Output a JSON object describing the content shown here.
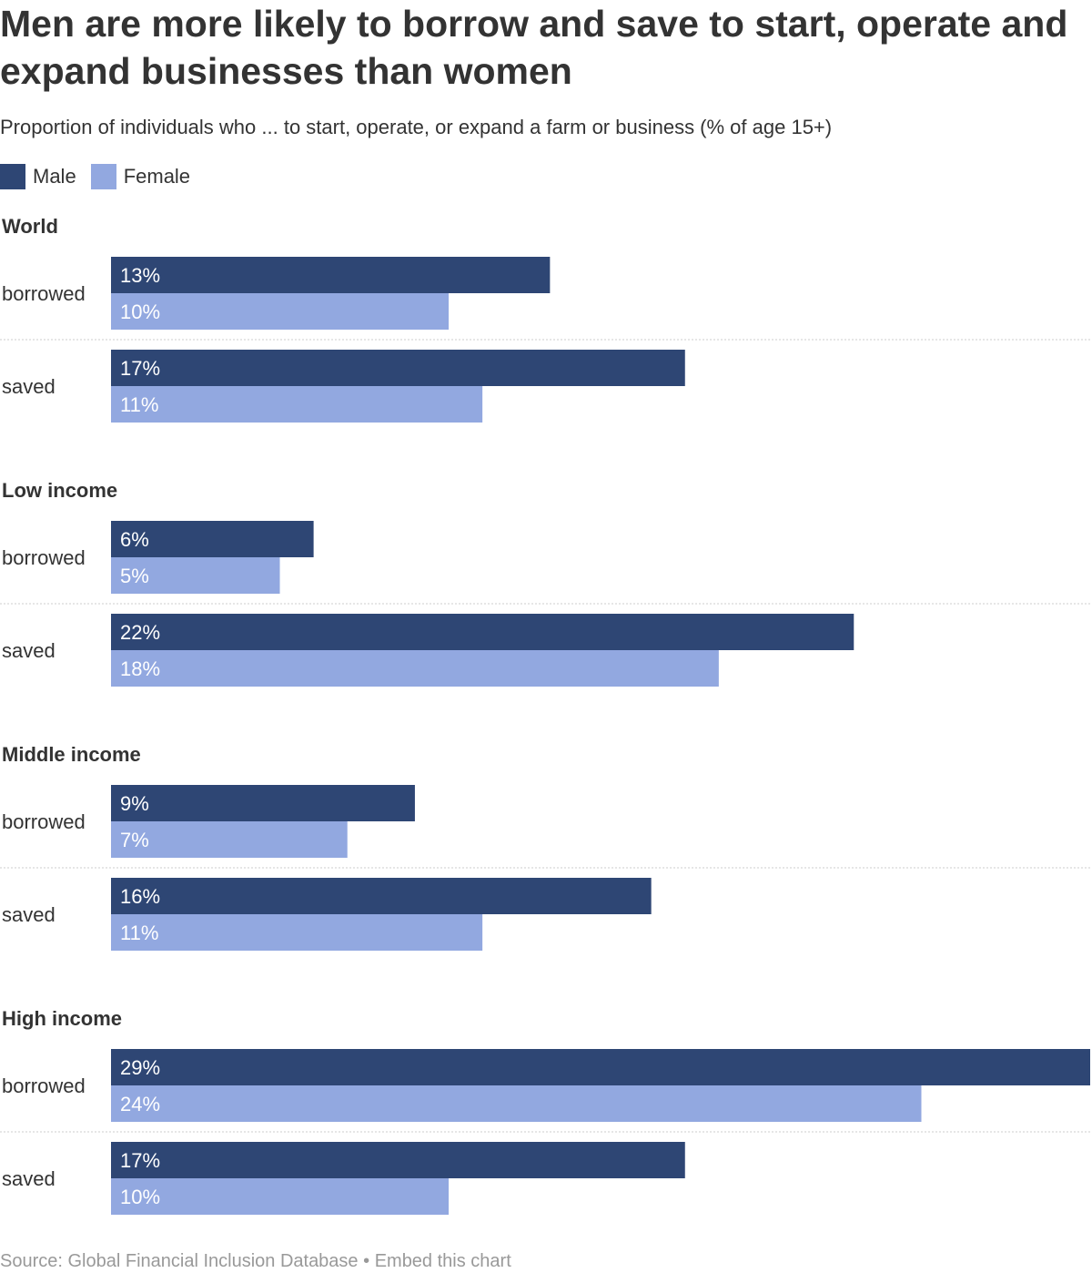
{
  "header": {
    "title": "Men are more likely to borrow and save to start, operate and expand businesses than women",
    "subtitle": "Proportion of individuals who ... to start, operate, or expand a farm or business (% of age 15+)"
  },
  "footer": {
    "source": "Source: Global Financial Inclusion Database",
    "separator": " • ",
    "embed": "Embed this chart"
  },
  "colors": {
    "male": "#2e4674",
    "female": "#92a8e0",
    "separator": "#cccccc",
    "value_text": "#ffffff"
  },
  "chart_data": {
    "type": "bar",
    "orientation": "horizontal",
    "title": "Men are more likely to borrow and save to start, operate and expand businesses than women",
    "subtitle": "Proportion of individuals who ... to start, operate, or expand a farm or business (% of age 15+)",
    "legend": {
      "placement": "top-left",
      "entries": [
        "Male",
        "Female"
      ]
    },
    "series": [
      {
        "name": "Male"
      },
      {
        "name": "Female"
      }
    ],
    "xlim": [
      0,
      29
    ],
    "value_suffix": "%",
    "groups": [
      {
        "name": "World",
        "categories": [
          {
            "label": "borrowed",
            "values": [
              13,
              10
            ]
          },
          {
            "label": "saved",
            "values": [
              17,
              11
            ]
          }
        ]
      },
      {
        "name": "Low income",
        "categories": [
          {
            "label": "borrowed",
            "values": [
              6,
              5
            ]
          },
          {
            "label": "saved",
            "values": [
              22,
              18
            ]
          }
        ]
      },
      {
        "name": "Middle income",
        "categories": [
          {
            "label": "borrowed",
            "values": [
              9,
              7
            ]
          },
          {
            "label": "saved",
            "values": [
              16,
              11
            ]
          }
        ]
      },
      {
        "name": "High income",
        "categories": [
          {
            "label": "borrowed",
            "values": [
              29,
              24
            ]
          },
          {
            "label": "saved",
            "values": [
              17,
              10
            ]
          }
        ]
      }
    ]
  }
}
